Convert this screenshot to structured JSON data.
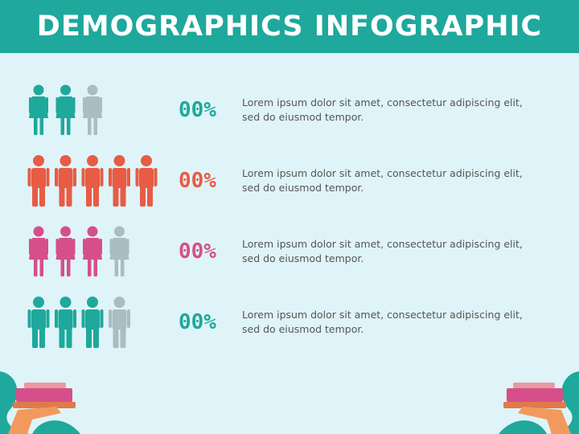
{
  "header": {
    "title": "DEMOGRAPHICS INFOGRAPHIC"
  },
  "rows": [
    {
      "percent": "00%",
      "lines": [
        "Lorem ipsum dolor sit amet, consectetur adipiscing elit,",
        "sed do eiusmod tempor."
      ]
    },
    {
      "percent": "00%",
      "lines": [
        "Lorem ipsum dolor sit amet, consectetur adipiscing elit,",
        "sed do eiusmod tempor."
      ]
    },
    {
      "percent": "00%",
      "lines": [
        "Lorem ipsum dolor sit amet, consectetur adipiscing elit,",
        "sed do eiusmod tempor."
      ]
    },
    {
      "percent": "00%",
      "lines": [
        "Lorem ipsum dolor sit amet, consectetur adipiscing elit,",
        "sed do eiusmod tempor."
      ]
    }
  ]
}
